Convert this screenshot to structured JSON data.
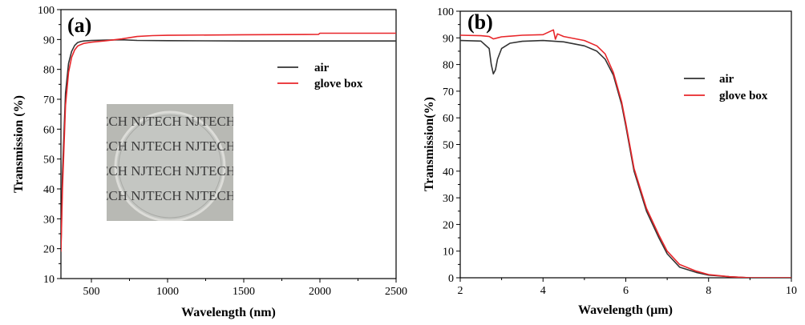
{
  "chart_data": [
    {
      "type": "line",
      "panel_label": "(a)",
      "xlabel": "Wavelength (nm)",
      "ylabel": "Transmission (%)",
      "xlim": [
        300,
        2500
      ],
      "ylim": [
        10,
        100
      ],
      "xticks": [
        500,
        1000,
        1500,
        2000,
        2500
      ],
      "yticks": [
        10,
        20,
        30,
        40,
        50,
        60,
        70,
        80,
        90,
        100
      ],
      "grid": false,
      "legend_position": "upper-right",
      "series": [
        {
          "name": "air",
          "color": "#333333",
          "x": [
            300,
            310,
            330,
            350,
            370,
            390,
            410,
            430,
            450,
            500,
            600,
            700,
            800,
            1000,
            1500,
            2000,
            2500
          ],
          "y": [
            20,
            45,
            72,
            82,
            86,
            88,
            89,
            89.3,
            89.5,
            89.7,
            89.8,
            89.9,
            89.7,
            89.6,
            89.5,
            89.5,
            89.5
          ]
        },
        {
          "name": "glove box",
          "color": "#e8262a",
          "x": [
            300,
            310,
            330,
            350,
            370,
            390,
            410,
            430,
            450,
            500,
            600,
            700,
            800,
            900,
            1000,
            1500,
            1990,
            2000,
            2500
          ],
          "y": [
            19,
            40,
            68,
            79,
            84,
            86.5,
            87.8,
            88.3,
            88.7,
            89.1,
            89.6,
            90.2,
            91,
            91.3,
            91.4,
            91.6,
            91.7,
            92.1,
            92.1
          ]
        }
      ],
      "inset": {
        "icon": "photo-glass-disc-icon",
        "rows": [
          "ECH NJTECH NJTECH",
          "ECH NJTECH NJTECH",
          "ECH NJTECH NJTECH",
          "ECH NJTECH NJTECH"
        ]
      }
    },
    {
      "type": "line",
      "panel_label": "(b)",
      "xlabel": "Wavelength (μm)",
      "ylabel": "Transmission(%)",
      "xlim": [
        2,
        10
      ],
      "ylim": [
        0,
        100
      ],
      "xticks": [
        2,
        4,
        6,
        8,
        10
      ],
      "yticks": [
        0,
        10,
        20,
        30,
        40,
        50,
        60,
        70,
        80,
        90,
        100
      ],
      "grid": false,
      "legend_position": "upper-right",
      "series": [
        {
          "name": "air",
          "color": "#333333",
          "x": [
            2,
            2.5,
            2.7,
            2.75,
            2.8,
            2.85,
            2.9,
            3.0,
            3.2,
            3.5,
            4.0,
            4.5,
            5.0,
            5.3,
            5.5,
            5.7,
            5.9,
            6.0,
            6.2,
            6.5,
            6.8,
            7.0,
            7.3,
            7.7,
            8.0,
            8.5,
            9.0,
            10
          ],
          "y": [
            89,
            88.8,
            86,
            80,
            76.5,
            78,
            82,
            86,
            88,
            88.7,
            89,
            88.5,
            87,
            85,
            82,
            76,
            65,
            57,
            40,
            25,
            15,
            9,
            4,
            2,
            1,
            0.4,
            0,
            0
          ]
        },
        {
          "name": "glove box",
          "color": "#e8262a",
          "x": [
            2,
            2.5,
            2.7,
            2.8,
            2.9,
            3.0,
            3.5,
            4.0,
            4.25,
            4.3,
            4.35,
            4.5,
            5.0,
            5.3,
            5.5,
            5.7,
            5.9,
            6.0,
            6.2,
            6.5,
            6.8,
            7.0,
            7.3,
            7.7,
            8.0,
            8.5,
            9.0,
            10
          ],
          "y": [
            91,
            90.8,
            90.5,
            89.6,
            90,
            90.4,
            91,
            91.2,
            93,
            89.5,
            91.5,
            90.5,
            89,
            87,
            84,
            77,
            66,
            58,
            41,
            26,
            16,
            10,
            5,
            2.5,
            1.2,
            0.4,
            0,
            0
          ]
        }
      ]
    }
  ]
}
